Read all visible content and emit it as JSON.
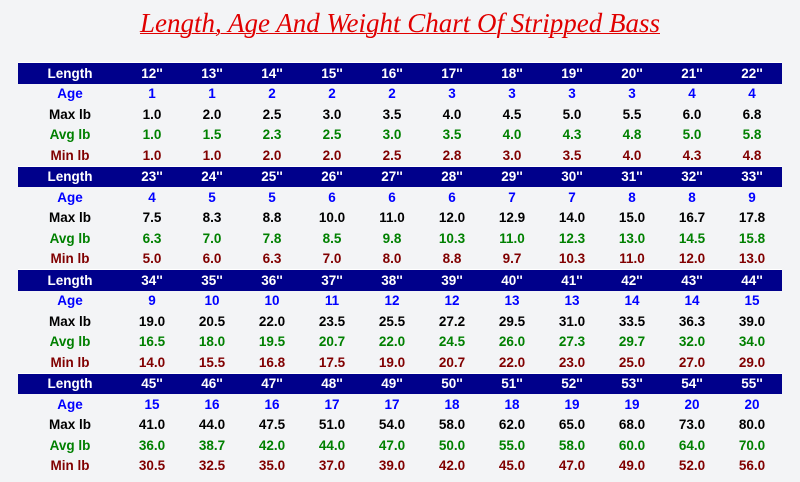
{
  "title": "Length, Age And Weight Chart Of Stripped Bass",
  "blocks": [
    {
      "header": "Length",
      "lengths": [
        "12''",
        "13''",
        "14''",
        "15''",
        "16''",
        "17''",
        "18''",
        "19''",
        "20''",
        "21''",
        "22''"
      ],
      "rows": [
        {
          "label": "Age",
          "values": [
            "1",
            "1",
            "2",
            "2",
            "2",
            "3",
            "3",
            "3",
            "3",
            "4",
            "4"
          ]
        },
        {
          "label": "Max lb",
          "values": [
            "1.0",
            "2.0",
            "2.5",
            "3.0",
            "3.5",
            "4.0",
            "4.5",
            "5.0",
            "5.5",
            "6.0",
            "6.8"
          ]
        },
        {
          "label": "Avg lb",
          "values": [
            "1.0",
            "1.5",
            "2.3",
            "2.5",
            "3.0",
            "3.5",
            "4.0",
            "4.3",
            "4.8",
            "5.0",
            "5.8"
          ]
        },
        {
          "label": "Min lb",
          "values": [
            "1.0",
            "1.0",
            "2.0",
            "2.0",
            "2.5",
            "2.8",
            "3.0",
            "3.5",
            "4.0",
            "4.3",
            "4.8"
          ]
        }
      ]
    },
    {
      "header": "Length",
      "lengths": [
        "23''",
        "24''",
        "25''",
        "26''",
        "27''",
        "28''",
        "29''",
        "30''",
        "31''",
        "32''",
        "33''"
      ],
      "rows": [
        {
          "label": "Age",
          "values": [
            "4",
            "5",
            "5",
            "6",
            "6",
            "6",
            "7",
            "7",
            "8",
            "8",
            "9"
          ]
        },
        {
          "label": "Max lb",
          "values": [
            "7.5",
            "8.3",
            "8.8",
            "10.0",
            "11.0",
            "12.0",
            "12.9",
            "14.0",
            "15.0",
            "16.7",
            "17.8"
          ]
        },
        {
          "label": "Avg lb",
          "values": [
            "6.3",
            "7.0",
            "7.8",
            "8.5",
            "9.8",
            "10.3",
            "11.0",
            "12.3",
            "13.0",
            "14.5",
            "15.8"
          ]
        },
        {
          "label": "Min lb",
          "values": [
            "5.0",
            "6.0",
            "6.3",
            "7.0",
            "8.0",
            "8.8",
            "9.7",
            "10.3",
            "11.0",
            "12.0",
            "13.0"
          ]
        }
      ]
    },
    {
      "header": "Length",
      "lengths": [
        "34''",
        "35''",
        "36''",
        "37''",
        "38''",
        "39''",
        "40''",
        "41''",
        "42''",
        "43''",
        "44''"
      ],
      "rows": [
        {
          "label": "Age",
          "values": [
            "9",
            "10",
            "10",
            "11",
            "12",
            "12",
            "13",
            "13",
            "14",
            "14",
            "15"
          ]
        },
        {
          "label": "Max lb",
          "values": [
            "19.0",
            "20.5",
            "22.0",
            "23.5",
            "25.5",
            "27.2",
            "29.5",
            "31.0",
            "33.5",
            "36.3",
            "39.0"
          ]
        },
        {
          "label": "Avg lb",
          "values": [
            "16.5",
            "18.0",
            "19.5",
            "20.7",
            "22.0",
            "24.5",
            "26.0",
            "27.3",
            "29.7",
            "32.0",
            "34.0"
          ]
        },
        {
          "label": "Min lb",
          "values": [
            "14.0",
            "15.5",
            "16.8",
            "17.5",
            "19.0",
            "20.7",
            "22.0",
            "23.0",
            "25.0",
            "27.0",
            "29.0"
          ]
        }
      ]
    },
    {
      "header": "Length",
      "lengths": [
        "45''",
        "46''",
        "47''",
        "48''",
        "49''",
        "50''",
        "51''",
        "52''",
        "53''",
        "54''",
        "55''"
      ],
      "rows": [
        {
          "label": "Age",
          "values": [
            "15",
            "16",
            "16",
            "17",
            "17",
            "18",
            "18",
            "19",
            "19",
            "20",
            "20"
          ]
        },
        {
          "label": "Max lb",
          "values": [
            "41.0",
            "44.0",
            "47.5",
            "51.0",
            "54.0",
            "58.0",
            "62.0",
            "65.0",
            "68.0",
            "73.0",
            "80.0"
          ]
        },
        {
          "label": "Avg lb",
          "values": [
            "36.0",
            "38.7",
            "42.0",
            "44.0",
            "47.0",
            "50.0",
            "55.0",
            "58.0",
            "60.0",
            "64.0",
            "70.0"
          ]
        },
        {
          "label": "Min lb",
          "values": [
            "30.5",
            "32.5",
            "35.0",
            "37.0",
            "39.0",
            "42.0",
            "45.0",
            "47.0",
            "49.0",
            "52.0",
            "56.0"
          ]
        }
      ]
    }
  ]
}
